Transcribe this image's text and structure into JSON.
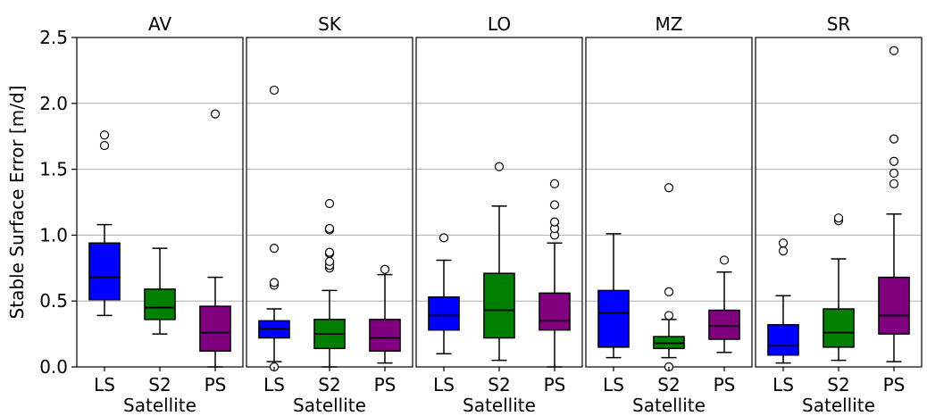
{
  "chart_data": {
    "type": "box",
    "ylabel": "Stable Surface Error [m/d]",
    "xlabel": "Satellite",
    "ylim": [
      0,
      2.5
    ],
    "yticks": [
      0.0,
      0.5,
      1.0,
      1.5,
      2.0,
      2.5
    ],
    "ytick_labels": [
      "0.0",
      "0.5",
      "1.0",
      "1.5",
      "2.0",
      "2.5"
    ],
    "grid": "horizontal",
    "categories": [
      "LS",
      "S2",
      "PS"
    ],
    "colors": {
      "LS": "#0000ff",
      "S2": "#008000",
      "PS": "#800080"
    },
    "panels": [
      {
        "title": "AV",
        "boxes": [
          {
            "category": "LS",
            "whisker_low": 0.39,
            "q1": 0.51,
            "median": 0.68,
            "q3": 0.94,
            "whisker_high": 1.08,
            "outliers": [
              1.68,
              1.76
            ]
          },
          {
            "category": "S2",
            "whisker_low": 0.25,
            "q1": 0.36,
            "median": 0.45,
            "q3": 0.59,
            "whisker_high": 0.9,
            "outliers": []
          },
          {
            "category": "PS",
            "whisker_low": 0.0,
            "q1": 0.12,
            "median": 0.26,
            "q3": 0.46,
            "whisker_high": 0.68,
            "outliers": [
              1.92
            ]
          }
        ]
      },
      {
        "title": "SK",
        "boxes": [
          {
            "category": "LS",
            "whisker_low": 0.04,
            "q1": 0.22,
            "median": 0.29,
            "q3": 0.35,
            "whisker_high": 0.44,
            "outliers": [
              0.0,
              0.62,
              0.64,
              0.9,
              2.1
            ]
          },
          {
            "category": "S2",
            "whisker_low": 0.0,
            "q1": 0.14,
            "median": 0.25,
            "q3": 0.36,
            "whisker_high": 0.58,
            "outliers": [
              0.75,
              0.77,
              0.8,
              0.86,
              0.87,
              1.04,
              1.05,
              1.24
            ]
          },
          {
            "category": "PS",
            "whisker_low": 0.03,
            "q1": 0.12,
            "median": 0.22,
            "q3": 0.36,
            "whisker_high": 0.7,
            "outliers": [
              0.74
            ]
          }
        ]
      },
      {
        "title": "LO",
        "boxes": [
          {
            "category": "LS",
            "whisker_low": 0.1,
            "q1": 0.28,
            "median": 0.39,
            "q3": 0.53,
            "whisker_high": 0.81,
            "outliers": [
              0.98
            ]
          },
          {
            "category": "S2",
            "whisker_low": 0.05,
            "q1": 0.22,
            "median": 0.43,
            "q3": 0.71,
            "whisker_high": 1.22,
            "outliers": [
              1.52
            ]
          },
          {
            "category": "PS",
            "whisker_low": 0.0,
            "q1": 0.28,
            "median": 0.35,
            "q3": 0.56,
            "whisker_high": 0.94,
            "outliers": [
              1.0,
              1.05,
              1.1,
              1.23,
              1.39
            ]
          }
        ]
      },
      {
        "title": "MZ",
        "boxes": [
          {
            "category": "LS",
            "whisker_low": 0.07,
            "q1": 0.15,
            "median": 0.41,
            "q3": 0.58,
            "whisker_high": 1.01,
            "outliers": []
          },
          {
            "category": "S2",
            "whisker_low": 0.07,
            "q1": 0.14,
            "median": 0.18,
            "q3": 0.23,
            "whisker_high": 0.36,
            "outliers": [
              0.0,
              0.39,
              0.57,
              1.36
            ]
          },
          {
            "category": "PS",
            "whisker_low": 0.11,
            "q1": 0.21,
            "median": 0.31,
            "q3": 0.43,
            "whisker_high": 0.72,
            "outliers": [
              0.81
            ]
          }
        ]
      },
      {
        "title": "SR",
        "boxes": [
          {
            "category": "LS",
            "whisker_low": 0.03,
            "q1": 0.09,
            "median": 0.16,
            "q3": 0.32,
            "whisker_high": 0.54,
            "outliers": [
              0.88,
              0.94
            ]
          },
          {
            "category": "S2",
            "whisker_low": 0.05,
            "q1": 0.15,
            "median": 0.26,
            "q3": 0.44,
            "whisker_high": 0.82,
            "outliers": [
              1.11,
              1.13
            ]
          },
          {
            "category": "PS",
            "whisker_low": 0.04,
            "q1": 0.25,
            "median": 0.39,
            "q3": 0.68,
            "whisker_high": 1.16,
            "outliers": [
              1.39,
              1.47,
              1.56,
              1.73,
              2.4
            ]
          }
        ]
      }
    ]
  }
}
